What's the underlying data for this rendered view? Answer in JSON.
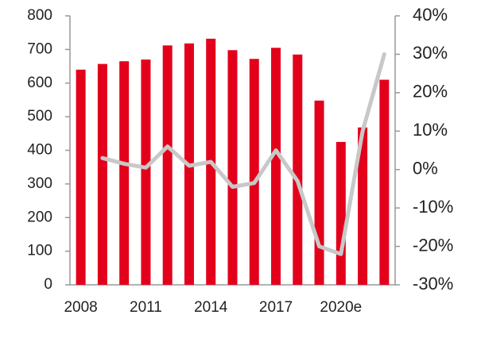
{
  "chart_data": {
    "type": "bar-line",
    "categories": [
      "2008",
      null,
      null,
      "2011",
      null,
      null,
      "2014",
      null,
      null,
      "2017",
      null,
      null,
      "2020e",
      null,
      null
    ],
    "series": [
      {
        "type": "bar",
        "color": "#e3001b",
        "values": [
          640,
          657,
          665,
          670,
          712,
          718,
          732,
          698,
          672,
          705,
          685,
          548,
          425,
          468,
          610
        ]
      },
      {
        "type": "line",
        "axis": "y2",
        "color": "#c8c8c8",
        "values": [
          null,
          3,
          1.5,
          0.5,
          6,
          1,
          2,
          -4.5,
          -3.5,
          5,
          -3,
          -20,
          -22,
          10,
          30
        ]
      }
    ],
    "ylim": [
      0,
      800
    ],
    "yticks": [
      0,
      100,
      200,
      300,
      400,
      500,
      600,
      700,
      800
    ],
    "y2lim": [
      -30,
      40
    ],
    "y2ticks": [
      {
        "value": -30,
        "label": "-30%"
      },
      {
        "value": -20,
        "label": "-20%"
      },
      {
        "value": -10,
        "label": "-10%"
      },
      {
        "value": 0,
        "label": "0%"
      },
      {
        "value": 10,
        "label": "10%"
      },
      {
        "value": 20,
        "label": "20%"
      },
      {
        "value": 30,
        "label": "30%"
      },
      {
        "value": 40,
        "label": "40%"
      }
    ]
  }
}
